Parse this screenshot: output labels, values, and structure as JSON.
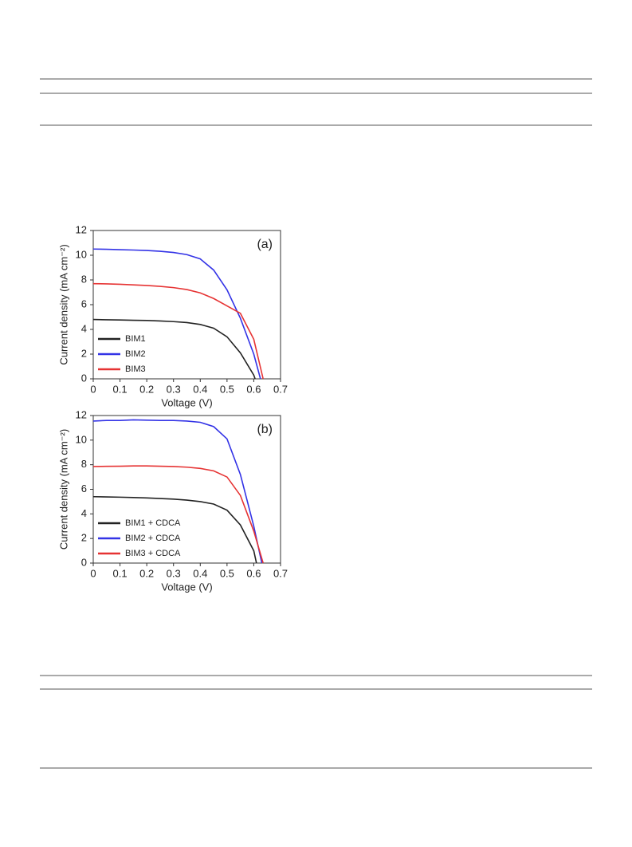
{
  "chart_data": [
    {
      "type": "line",
      "label": "(a)",
      "xlabel": "Voltage (V)",
      "ylabel": "Current density (mA cm⁻²)",
      "xlim": [
        0,
        0.7
      ],
      "xticks": [
        0,
        0.1,
        0.2,
        0.3,
        0.4,
        0.5,
        0.6,
        0.7
      ],
      "ylim": [
        0,
        12
      ],
      "yticks": [
        0,
        2,
        4,
        6,
        8,
        10,
        12
      ],
      "legend": "lower left",
      "series": [
        {
          "name": "BIM1",
          "color": "#222222",
          "x": [
            0,
            0.05,
            0.1,
            0.15,
            0.2,
            0.25,
            0.3,
            0.35,
            0.4,
            0.45,
            0.5,
            0.55,
            0.6,
            0.605
          ],
          "values": [
            4.8,
            4.78,
            4.76,
            4.74,
            4.72,
            4.68,
            4.63,
            4.55,
            4.4,
            4.1,
            3.4,
            2.1,
            0.3,
            0
          ]
        },
        {
          "name": "BIM2",
          "color": "#3333e6",
          "x": [
            0,
            0.05,
            0.1,
            0.15,
            0.2,
            0.25,
            0.3,
            0.35,
            0.4,
            0.45,
            0.5,
            0.55,
            0.6,
            0.625
          ],
          "values": [
            10.5,
            10.48,
            10.45,
            10.42,
            10.38,
            10.32,
            10.22,
            10.05,
            9.7,
            8.8,
            7.2,
            4.9,
            2.0,
            0
          ]
        },
        {
          "name": "BIM3",
          "color": "#e63333",
          "x": [
            0,
            0.05,
            0.1,
            0.15,
            0.2,
            0.25,
            0.3,
            0.35,
            0.4,
            0.45,
            0.5,
            0.55,
            0.6,
            0.635
          ],
          "values": [
            7.7,
            7.68,
            7.65,
            7.6,
            7.55,
            7.48,
            7.38,
            7.22,
            6.95,
            6.5,
            5.9,
            5.3,
            3.2,
            0
          ]
        }
      ]
    },
    {
      "type": "line",
      "label": "(b)",
      "xlabel": "Voltage (V)",
      "ylabel": "Current density (mA cm⁻²)",
      "xlim": [
        0,
        0.7
      ],
      "xticks": [
        0,
        0.1,
        0.2,
        0.3,
        0.4,
        0.5,
        0.6,
        0.7
      ],
      "ylim": [
        0,
        12
      ],
      "yticks": [
        0,
        2,
        4,
        6,
        8,
        10,
        12
      ],
      "legend": "lower left",
      "series": [
        {
          "name": "BIM1 + CDCA",
          "color": "#222222",
          "x": [
            0,
            0.05,
            0.1,
            0.15,
            0.2,
            0.25,
            0.3,
            0.35,
            0.4,
            0.45,
            0.5,
            0.55,
            0.6,
            0.61
          ],
          "values": [
            5.4,
            5.38,
            5.36,
            5.33,
            5.3,
            5.25,
            5.2,
            5.12,
            5.0,
            4.8,
            4.3,
            3.1,
            1.0,
            0
          ]
        },
        {
          "name": "BIM2 + CDCA",
          "color": "#3333e6",
          "x": [
            0,
            0.05,
            0.1,
            0.15,
            0.2,
            0.25,
            0.3,
            0.35,
            0.4,
            0.45,
            0.5,
            0.55,
            0.6,
            0.63
          ],
          "values": [
            11.55,
            11.6,
            11.6,
            11.65,
            11.62,
            11.6,
            11.6,
            11.55,
            11.45,
            11.1,
            10.1,
            7.2,
            3.0,
            0
          ]
        },
        {
          "name": "BIM3 + CDCA",
          "color": "#e63333",
          "x": [
            0,
            0.05,
            0.1,
            0.15,
            0.2,
            0.25,
            0.3,
            0.35,
            0.4,
            0.45,
            0.5,
            0.55,
            0.6,
            0.635
          ],
          "values": [
            7.85,
            7.87,
            7.88,
            7.9,
            7.9,
            7.88,
            7.85,
            7.8,
            7.7,
            7.5,
            7.0,
            5.5,
            2.6,
            0
          ]
        }
      ]
    }
  ]
}
